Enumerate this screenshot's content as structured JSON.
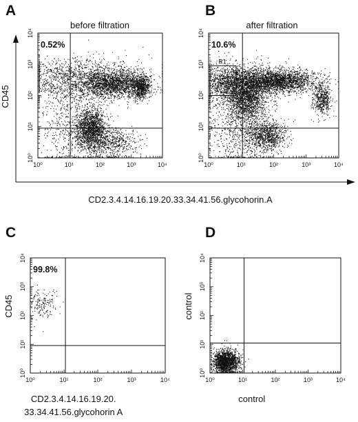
{
  "figure": {
    "outer_axis_label_ab_y": "CD45",
    "outer_axis_label_ab_x": "CD2.3.4.14.16.19.20.33.34.41.56.glycohorin.A"
  },
  "chart_data": [
    {
      "type": "scatter",
      "panel": "A",
      "title": "before filtration",
      "xlabel": "",
      "ylabel": "",
      "xscale": "log",
      "yscale": "log",
      "xlim": [
        1,
        10000
      ],
      "ylim": [
        1,
        10000
      ],
      "x_tick_labels": [
        "10⁰",
        "10¹",
        "10²",
        "10³",
        "10⁴"
      ],
      "y_tick_labels": [
        "10⁰",
        "10¹",
        "10²",
        "10³",
        "10⁴"
      ],
      "quadrant_x": 11,
      "quadrant_y": 9,
      "annotations": [
        {
          "text": "0.52%",
          "position": "top-left"
        }
      ],
      "regions": [],
      "populations": [
        {
          "center": [
            30,
            300
          ],
          "spread": [
            1.0,
            0.35
          ],
          "count": 1800
        },
        {
          "center": [
            300,
            250
          ],
          "spread": [
            0.45,
            0.2
          ],
          "count": 1400
        },
        {
          "center": [
            2000,
            180
          ],
          "spread": [
            0.15,
            0.18
          ],
          "count": 700
        },
        {
          "center": [
            50,
            8
          ],
          "spread": [
            0.25,
            0.35
          ],
          "count": 1800
        },
        {
          "center": [
            300,
            3
          ],
          "spread": [
            0.35,
            0.25
          ],
          "count": 500
        },
        {
          "center": [
            8,
            8
          ],
          "spread": [
            0.45,
            0.6
          ],
          "count": 400
        }
      ],
      "grid": false
    },
    {
      "type": "scatter",
      "panel": "B",
      "title": "after filtration",
      "xlabel": "",
      "ylabel": "",
      "xscale": "log",
      "yscale": "log",
      "xlim": [
        1,
        10000
      ],
      "ylim": [
        1,
        10000
      ],
      "x_tick_labels": [
        "10⁰",
        "10¹",
        "10²",
        "10³",
        "10⁴"
      ],
      "y_tick_labels": [
        "10⁰",
        "10¹",
        "10²",
        "10³",
        "10⁴"
      ],
      "quadrant_x": 11,
      "quadrant_y": 9,
      "annotations": [
        {
          "text": "10.6%",
          "position": "top-left"
        }
      ],
      "regions": [
        {
          "label": "R1",
          "x_range": [
            1,
            7
          ],
          "y_range": [
            100,
            900
          ]
        }
      ],
      "populations": [
        {
          "center": [
            8,
            250
          ],
          "spread": [
            0.6,
            0.3
          ],
          "count": 2200
        },
        {
          "center": [
            150,
            300
          ],
          "spread": [
            0.55,
            0.18
          ],
          "count": 2000
        },
        {
          "center": [
            15,
            70
          ],
          "spread": [
            0.3,
            0.35
          ],
          "count": 1300
        },
        {
          "center": [
            3000,
            80
          ],
          "spread": [
            0.15,
            0.25
          ],
          "count": 500
        },
        {
          "center": [
            60,
            5
          ],
          "spread": [
            0.3,
            0.25
          ],
          "count": 900
        },
        {
          "center": [
            8,
            8
          ],
          "spread": [
            0.5,
            0.6
          ],
          "count": 700
        }
      ],
      "grid": false
    },
    {
      "type": "scatter",
      "panel": "C",
      "title": "",
      "xlabel": "CD2.3.4.14.16.19.20.\n33.34.41.56.glycohorin A",
      "ylabel": "CD45",
      "xscale": "log",
      "yscale": "log",
      "xlim": [
        1,
        10000
      ],
      "ylim": [
        1,
        10000
      ],
      "x_tick_labels": [
        "10⁰",
        "10¹",
        "10²",
        "10³",
        "10⁴"
      ],
      "y_tick_labels": [
        "10⁰",
        "10¹",
        "10²",
        "10³",
        "10⁴"
      ],
      "quadrant_x": 11,
      "quadrant_y": 9,
      "annotations": [
        {
          "text": "99.8%",
          "position": "top-left"
        }
      ],
      "regions": [],
      "populations": [
        {
          "center": [
            2.2,
            250
          ],
          "spread": [
            0.2,
            0.25
          ],
          "count": 160
        }
      ],
      "grid": false
    },
    {
      "type": "scatter",
      "panel": "D",
      "title": "",
      "xlabel": "control",
      "ylabel": "control",
      "xscale": "log",
      "yscale": "log",
      "xlim": [
        1,
        10000
      ],
      "ylim": [
        1,
        10000
      ],
      "x_tick_labels": [
        "10⁰",
        "10¹",
        "10²",
        "10³",
        "10⁴"
      ],
      "y_tick_labels": [
        "10⁰",
        "10¹",
        "10²",
        "10³",
        "10⁴"
      ],
      "quadrant_x": 11,
      "quadrant_y": 11,
      "annotations": [],
      "regions": [],
      "populations": [
        {
          "center": [
            3,
            2.5
          ],
          "spread": [
            0.2,
            0.2
          ],
          "count": 1800
        }
      ],
      "grid": false
    }
  ]
}
